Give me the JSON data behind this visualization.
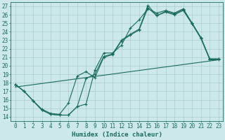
{
  "xlabel": "Humidex (Indice chaleur)",
  "bg_color": "#cce8e8",
  "line_color": "#1a6b5a",
  "grid_color": "#aacccc",
  "xlim": [
    -0.5,
    23.5
  ],
  "ylim": [
    13.5,
    27.5
  ],
  "xticks": [
    0,
    1,
    2,
    3,
    4,
    5,
    6,
    7,
    8,
    9,
    10,
    11,
    12,
    13,
    14,
    15,
    16,
    17,
    18,
    19,
    20,
    21,
    22,
    23
  ],
  "yticks": [
    14,
    15,
    16,
    17,
    18,
    19,
    20,
    21,
    22,
    23,
    24,
    25,
    26,
    27
  ],
  "line1_x": [
    0,
    1,
    2,
    3,
    4,
    5,
    6,
    7,
    8,
    9,
    10,
    11,
    12,
    13,
    14,
    15,
    16,
    17,
    18,
    19,
    20,
    21,
    22,
    23
  ],
  "line1_y": [
    17.8,
    17.0,
    15.9,
    14.8,
    14.3,
    14.2,
    14.2,
    15.2,
    15.5,
    19.5,
    21.5,
    21.5,
    22.4,
    24.4,
    25.4,
    26.7,
    26.2,
    26.5,
    26.2,
    26.7,
    25.0,
    23.3,
    20.8,
    20.8
  ],
  "line2_x": [
    0,
    1,
    2,
    3,
    4,
    5,
    6,
    7,
    8,
    9,
    10,
    11,
    12,
    13,
    14,
    15,
    16,
    17,
    18,
    19,
    20,
    21,
    22,
    23
  ],
  "line2_y": [
    17.8,
    17.0,
    15.9,
    14.8,
    14.3,
    14.2,
    14.2,
    15.2,
    18.5,
    19.0,
    21.1,
    21.4,
    23.0,
    23.7,
    24.3,
    27.1,
    25.9,
    26.4,
    26.1,
    26.6,
    25.0,
    23.3,
    20.8,
    20.8
  ],
  "line3_x": [
    0,
    1,
    2,
    3,
    4,
    5,
    6,
    7,
    8,
    9,
    10,
    11,
    12,
    13,
    14,
    15,
    16,
    17,
    18,
    19,
    20,
    21,
    22,
    23
  ],
  "line3_y": [
    17.8,
    17.0,
    15.9,
    14.9,
    14.4,
    14.3,
    15.6,
    18.8,
    19.3,
    18.6,
    21.0,
    21.3,
    22.9,
    23.6,
    24.2,
    26.8,
    25.9,
    26.3,
    26.0,
    26.5,
    24.9,
    23.2,
    20.7,
    20.7
  ],
  "trend_x": [
    0,
    23
  ],
  "trend_y": [
    17.5,
    20.7
  ]
}
